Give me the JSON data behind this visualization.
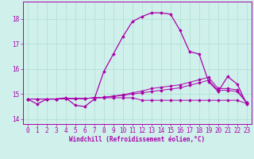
{
  "xlabel": "Windchill (Refroidissement éolien,°C)",
  "background_color": "#cff0eb",
  "line_color": "#aa00aa",
  "xlim": [
    -0.5,
    23.5
  ],
  "ylim": [
    13.8,
    18.7
  ],
  "yticks": [
    14,
    15,
    16,
    17,
    18
  ],
  "xticks": [
    0,
    1,
    2,
    3,
    4,
    5,
    6,
    7,
    8,
    9,
    10,
    11,
    12,
    13,
    14,
    15,
    16,
    17,
    18,
    19,
    20,
    21,
    22,
    23
  ],
  "series": {
    "main": {
      "x": [
        0,
        1,
        2,
        3,
        4,
        5,
        6,
        7,
        8,
        9,
        10,
        11,
        12,
        13,
        14,
        15,
        16,
        17,
        18,
        19,
        20,
        21,
        22,
        23
      ],
      "y": [
        14.8,
        14.6,
        14.8,
        14.8,
        14.85,
        14.55,
        14.5,
        14.8,
        15.9,
        16.6,
        17.3,
        17.9,
        18.1,
        18.25,
        18.25,
        18.2,
        17.55,
        16.7,
        16.6,
        15.5,
        15.1,
        15.7,
        15.4,
        14.6
      ]
    },
    "line2": {
      "x": [
        0,
        1,
        2,
        3,
        4,
        5,
        6,
        7,
        8,
        9,
        10,
        11,
        12,
        13,
        14,
        15,
        16,
        17,
        18,
        19,
        20,
        21,
        22,
        23
      ],
      "y": [
        14.8,
        14.8,
        14.8,
        14.8,
        14.82,
        14.82,
        14.82,
        14.85,
        14.87,
        14.9,
        14.95,
        15.0,
        15.05,
        15.1,
        15.15,
        15.2,
        15.25,
        15.35,
        15.45,
        15.55,
        15.15,
        15.15,
        15.1,
        14.65
      ]
    },
    "line3": {
      "x": [
        0,
        1,
        2,
        3,
        4,
        5,
        6,
        7,
        8,
        9,
        10,
        11,
        12,
        13,
        14,
        15,
        16,
        17,
        18,
        19,
        20,
        21,
        22,
        23
      ],
      "y": [
        14.8,
        14.8,
        14.8,
        14.8,
        14.82,
        14.82,
        14.82,
        14.85,
        14.87,
        14.92,
        14.97,
        15.05,
        15.12,
        15.22,
        15.27,
        15.32,
        15.37,
        15.47,
        15.57,
        15.67,
        15.22,
        15.22,
        15.17,
        14.67
      ]
    },
    "line4": {
      "x": [
        0,
        1,
        2,
        3,
        4,
        5,
        6,
        7,
        8,
        9,
        10,
        11,
        12,
        13,
        14,
        15,
        16,
        17,
        18,
        19,
        20,
        21,
        22,
        23
      ],
      "y": [
        14.8,
        14.8,
        14.8,
        14.8,
        14.82,
        14.82,
        14.82,
        14.85,
        14.85,
        14.85,
        14.85,
        14.85,
        14.75,
        14.75,
        14.75,
        14.75,
        14.75,
        14.75,
        14.75,
        14.75,
        14.75,
        14.75,
        14.75,
        14.62
      ]
    }
  }
}
